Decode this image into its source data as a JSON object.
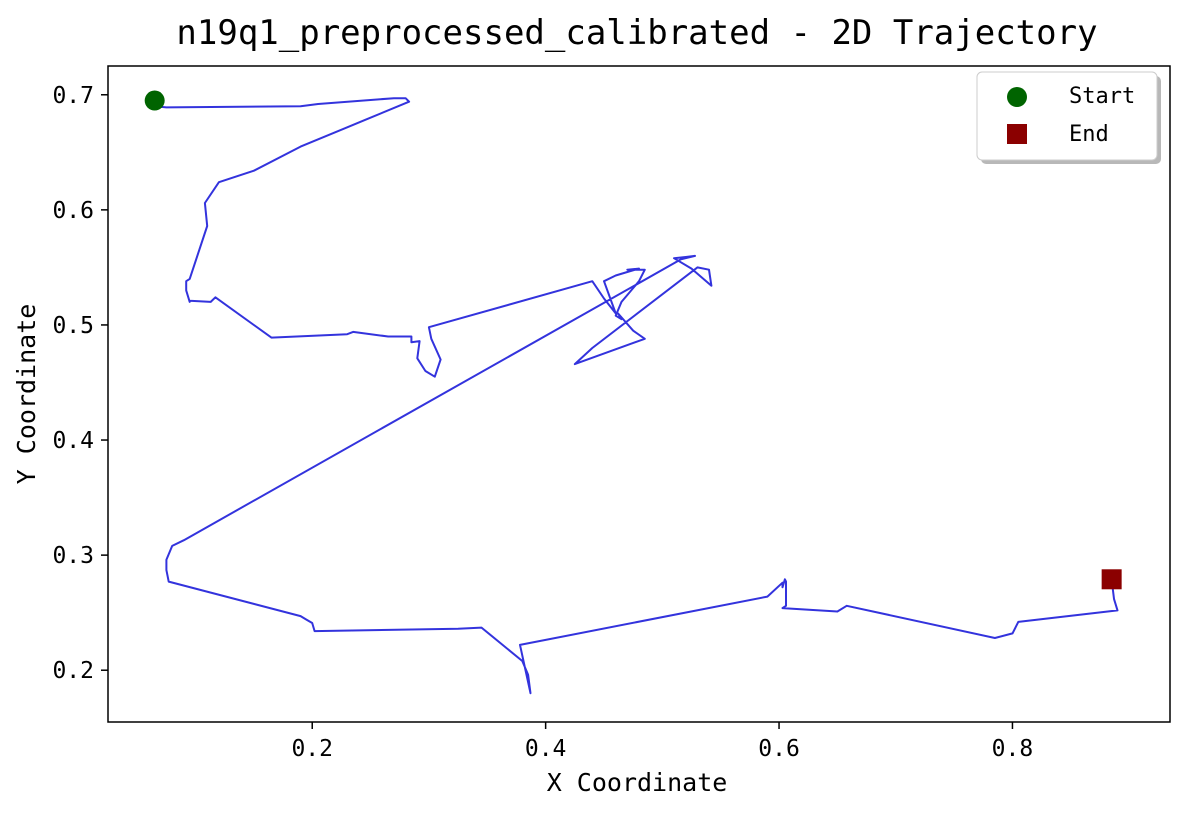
{
  "chart_data": {
    "type": "line",
    "title": "n19q1_preprocessed_calibrated - 2D Trajectory",
    "xlabel": "X Coordinate",
    "ylabel": "Y Coordinate",
    "xlim": [
      0.025,
      0.935
    ],
    "ylim": [
      0.155,
      0.725
    ],
    "x_ticks": [
      0.2,
      0.4,
      0.6,
      0.8
    ],
    "y_ticks": [
      0.2,
      0.3,
      0.4,
      0.5,
      0.6,
      0.7
    ],
    "x_tick_labels": [
      "0.2",
      "0.4",
      "0.6",
      "0.8"
    ],
    "y_tick_labels": [
      "0.2",
      "0.3",
      "0.4",
      "0.5",
      "0.6",
      "0.7"
    ],
    "grid": false,
    "legend_position": "top-right",
    "series": [
      {
        "role": "trajectory",
        "color": "#3333dd",
        "x": [
          0.065,
          0.075,
          0.19,
          0.205,
          0.27,
          0.28,
          0.283,
          0.245,
          0.19,
          0.15,
          0.12,
          0.108,
          0.11,
          0.095,
          0.092,
          0.092,
          0.095,
          0.095,
          0.113,
          0.117,
          0.165,
          0.23,
          0.235,
          0.265,
          0.285,
          0.285,
          0.292,
          0.29,
          0.297,
          0.305,
          0.31,
          0.302,
          0.3,
          0.44,
          0.45,
          0.46,
          0.45,
          0.46,
          0.47,
          0.48,
          0.47,
          0.485,
          0.48,
          0.465,
          0.46,
          0.465,
          0.462,
          0.475,
          0.485,
          0.425,
          0.44,
          0.53,
          0.54,
          0.542,
          0.525,
          0.51,
          0.52,
          0.528,
          0.516,
          0.09,
          0.08,
          0.075,
          0.075,
          0.077,
          0.19,
          0.195,
          0.2,
          0.202,
          0.325,
          0.345,
          0.38,
          0.385,
          0.387,
          0.378,
          0.59,
          0.603,
          0.603,
          0.605,
          0.606,
          0.606,
          0.603,
          0.65,
          0.658,
          0.785,
          0.8,
          0.805,
          0.89,
          0.887,
          0.885
        ],
        "y": [
          0.69,
          0.689,
          0.69,
          0.692,
          0.697,
          0.697,
          0.694,
          0.678,
          0.655,
          0.634,
          0.624,
          0.606,
          0.586,
          0.54,
          0.538,
          0.53,
          0.52,
          0.521,
          0.52,
          0.524,
          0.489,
          0.492,
          0.494,
          0.49,
          0.49,
          0.485,
          0.486,
          0.471,
          0.46,
          0.455,
          0.47,
          0.488,
          0.498,
          0.538,
          0.523,
          0.51,
          0.538,
          0.543,
          0.546,
          0.549,
          0.548,
          0.548,
          0.538,
          0.52,
          0.508,
          0.505,
          0.51,
          0.495,
          0.488,
          0.466,
          0.48,
          0.55,
          0.548,
          0.534,
          0.549,
          0.558,
          0.559,
          0.56,
          0.557,
          0.313,
          0.308,
          0.296,
          0.287,
          0.277,
          0.247,
          0.244,
          0.241,
          0.234,
          0.236,
          0.237,
          0.208,
          0.196,
          0.18,
          0.222,
          0.264,
          0.276,
          0.272,
          0.279,
          0.277,
          0.256,
          0.254,
          0.251,
          0.256,
          0.228,
          0.232,
          0.242,
          0.252,
          0.262,
          0.279
        ]
      }
    ],
    "markers": [
      {
        "name": "Start",
        "shape": "circle",
        "color": "#006400",
        "x": 0.065,
        "y": 0.695
      },
      {
        "name": "End",
        "shape": "square",
        "color": "#8b0000",
        "x": 0.885,
        "y": 0.279
      }
    ]
  }
}
